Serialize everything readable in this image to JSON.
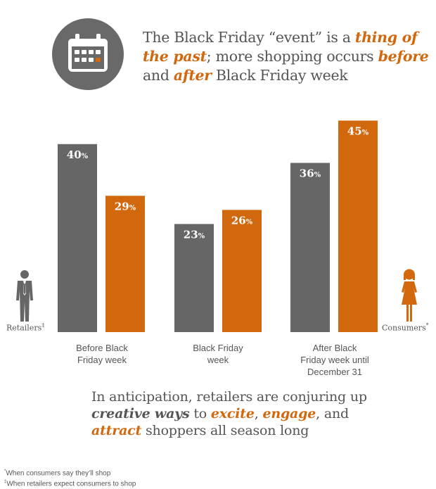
{
  "headline": {
    "part1": "The Black Friday “event” is a ",
    "em1": "thing of the past",
    "part2": "; more shopping occurs ",
    "em2": "before",
    "part3": " and ",
    "em3": "after",
    "part4": " Black Friday week"
  },
  "icons": {
    "header": "calendar-icon",
    "left": "businessman-icon",
    "right": "woman-icon"
  },
  "colors": {
    "retailers": "#666666",
    "consumers": "#d2680e",
    "icon_circle": "#696969"
  },
  "legend": {
    "retailers": {
      "label": "Retailers",
      "mark": "‡"
    },
    "consumers": {
      "label": "Consumers",
      "mark": "*"
    }
  },
  "chart_data": {
    "type": "bar",
    "categories": [
      "Before Black Friday week",
      "Black Friday week",
      "After Black Friday week until December 31"
    ],
    "category_lines": [
      [
        "Before Black",
        "Friday week"
      ],
      [
        "Black Friday",
        "week"
      ],
      [
        "After Black",
        "Friday week until",
        "December 31"
      ]
    ],
    "series": [
      {
        "name": "Retailers",
        "values": [
          40,
          23,
          36
        ],
        "labels": [
          "40",
          "23",
          "36"
        ]
      },
      {
        "name": "Consumers",
        "values": [
          29,
          26,
          45
        ],
        "labels": [
          "29",
          "26",
          "45"
        ]
      }
    ],
    "unit": "%",
    "ylim": [
      0,
      45
    ],
    "grid": false
  },
  "footer": {
    "line1": "In anticipation, retailers are conjuring up",
    "em_creative": "creative ways",
    "to": " to ",
    "em_excite": "excite",
    "comma": ", ",
    "em_engage": "engage",
    "and": ", and",
    "em_attract": "attract",
    "tail": " shoppers all season long"
  },
  "notes": {
    "n1_mark": "*",
    "n1": "When consumers say they’ll shop",
    "n2_mark": "‡",
    "n2": "When retailers expect consumers to shop"
  }
}
